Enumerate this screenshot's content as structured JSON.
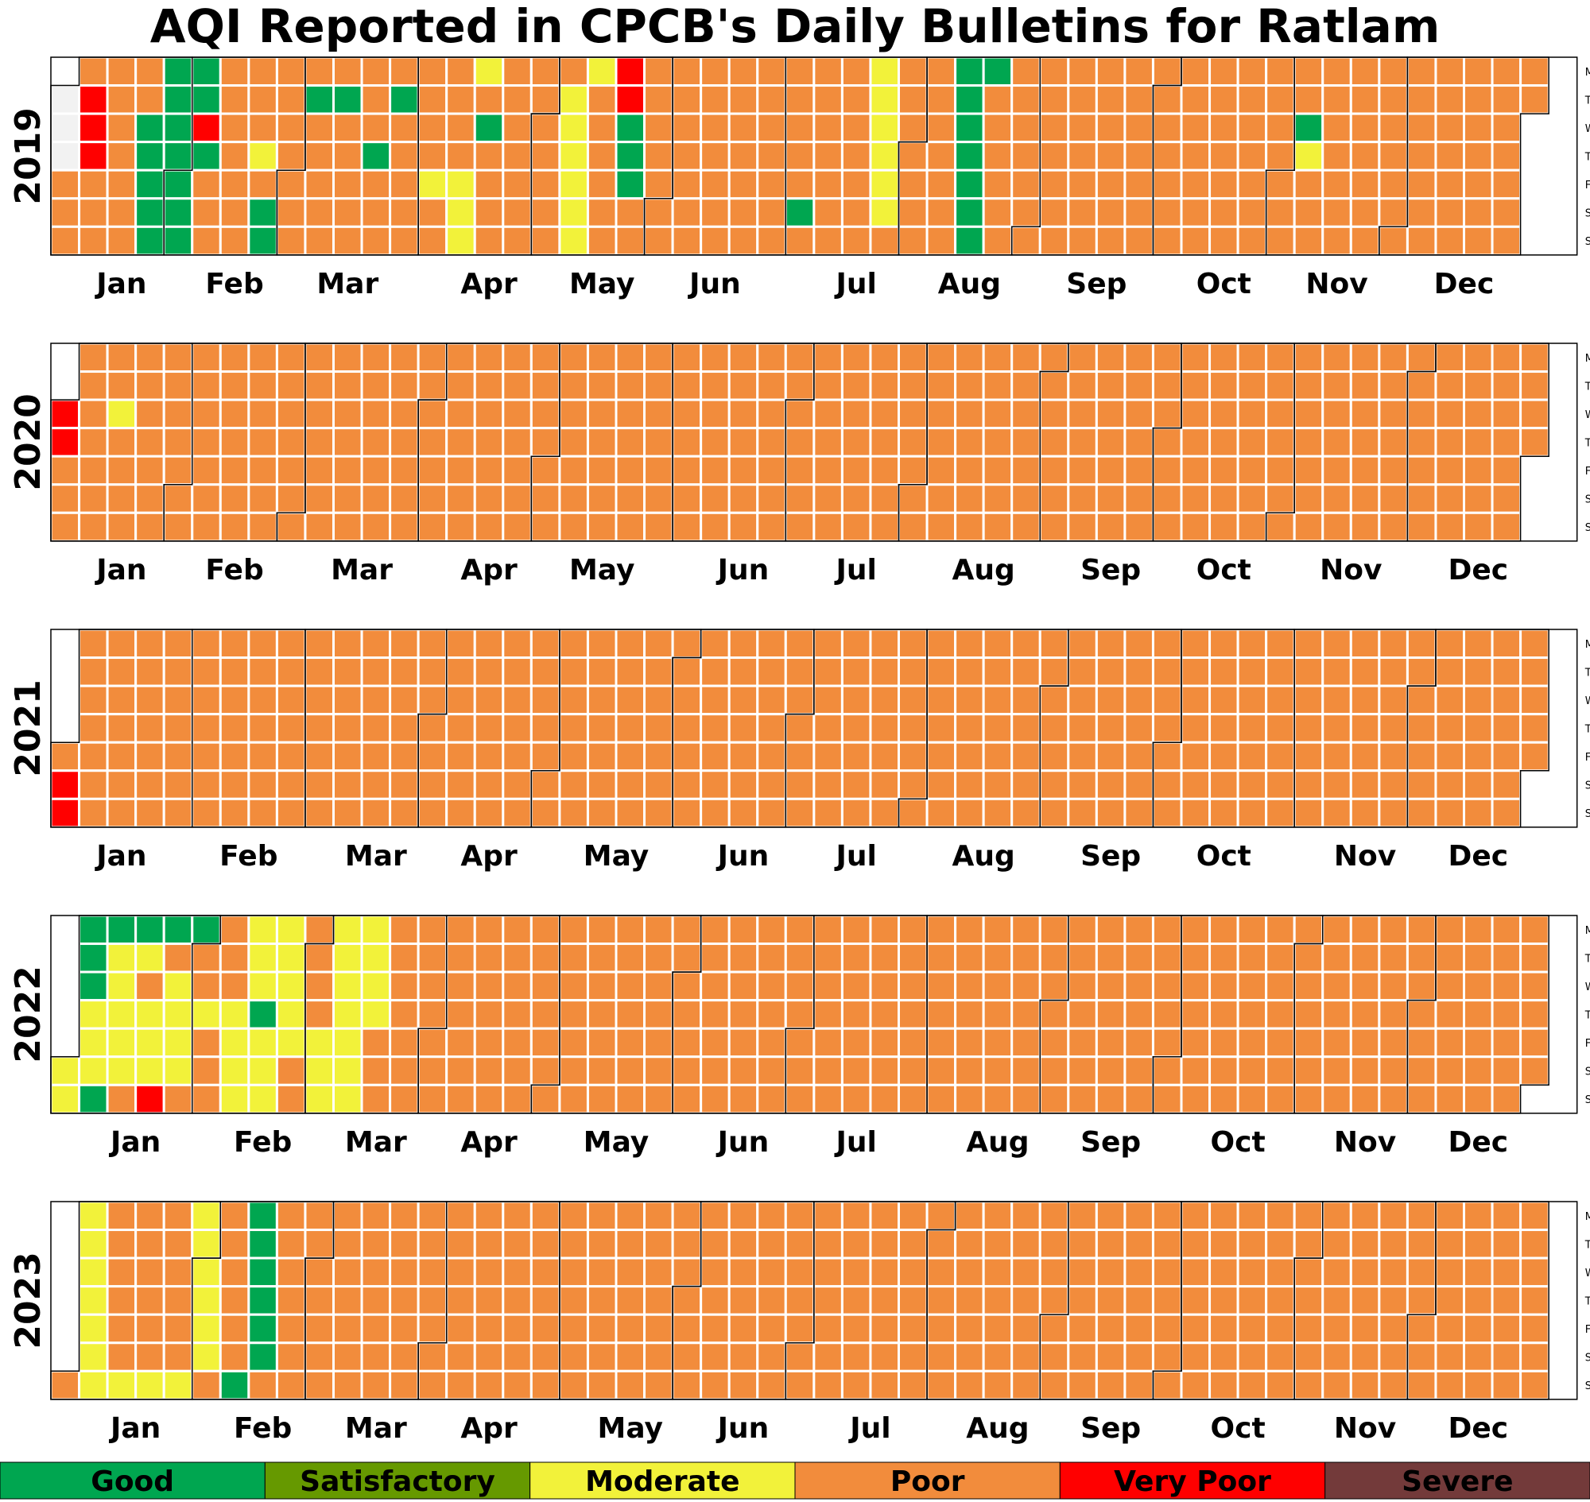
{
  "chart_data": {
    "type": "heatmap",
    "subtype": "calendar",
    "title": "AQI Reported in CPCB's Daily Bulletins for Ratlam",
    "weekday_labels": [
      "Mon",
      "Tue",
      "Wed",
      "Thu",
      "Fri",
      "Sat",
      "Sun"
    ],
    "month_labels": [
      "Jan",
      "Feb",
      "Mar",
      "Apr",
      "May",
      "Jun",
      "Jul",
      "Aug",
      "Sep",
      "Oct",
      "Nov",
      "Dec"
    ],
    "categories": [
      {
        "label": "Good",
        "color": "#00A650"
      },
      {
        "label": "Satisfactory",
        "color": "#669900"
      },
      {
        "label": "Moderate",
        "color": "#F2F23A"
      },
      {
        "label": "Poor",
        "color": "#F28C3C"
      },
      {
        "label": "Very Poor",
        "color": "#FF0000"
      },
      {
        "label": "Severe",
        "color": "#733A3A"
      }
    ],
    "note": "Each year string lists daily AQI category codes from Jan 1: G=Good, S=Satisfactory, M=Moderate, P=Poor, V=Very Poor, X=Severe, N=no data.",
    "years": [
      {
        "year": "2019",
        "days": "NNNPPPPVVVPPPPPPPPPPPPGGGGGGGGGGGGGGVGPPPPPPPPPPPPPMPGGPPPPPPPPGPPPPPPGPPPPPPPPGPPPPGPPPPPPPPPMPPPPPPMMMMPGPPPPPPPPPPPPPPPPPPPMMMMMMMPPPPPPVVGGGPPPPPPPPPPPPPPPPPPPPPPPPPPPPPPPPPPPPPPPPPPGPPPPPPPPPPPPPPPMMMMMMPPPPPPPPPPPPPPPGGGGGGGGPPPPPPPPPPPPPPPPPPPPPPPPPPPPPPPPPPPPPPPPPPPPPPPPPPPPPPPPPPPPPPPPPPPPPPPPPPPPPPGMPPPPPPPPPPPPPPPPPPPPPPPPPPPPPPPPPPPPPPPPPPPPPPPPPPPPPPPPPPPPPPPPPPPGGGGGGGGGGGGGGGGGGGGGGGGGGGGGPPPPPPPPPPPPPPPPPPPPPPPPPPPPPPPPPPP"
      },
      {
        "year": "2020",
        "days": "VVPPPPPPPPPPPPMPPPPPPPPPPPPPPPPPPPPPPPPPPPPPPPPPPPPPPPPPPPPPPPPPPPPPPPPPPPPPPPPPPPPPPPPPPPPPPPPPPPPPPPPPPPPPPPPPPPPPPPPPPPPPPPPPPPPPPPPPPPPPPPPPPPPPPPPPPPPPPPPPPPPPPPPPPPPPPPPPPPPPPPPPPPPPPPPPPPPPPPPPPPPPPPPPPPPPPPPPPPPPPPPPPPPPPPPPPPPPPPPPPPPPPPPPPPPPPPPPPPPPPPPPPPPPPPPPPPPPPPPPPPPPPPPPPPPPPPPPPPPPPPPPPPPPPPPPPPPPPPPPPPPPPPPPPPPPPPPPPPPPPPPPPPPPPPPPPPPPPPPPPPPPPPPPPPPPPPPPPPPPPPPPPPPPPPPPPPPPPPPPPPPPPPPPPPPPPPPPPPPPPPPPPPPPPPPPPPPPPPPPPPPPPPPPPPPPPPPPPPPPPPPPPPPPPPPPPPPPPPPPPPPPPPPPPPPP"
      },
      {
        "year": "2021",
        "days": "PVVPPPPPPPPPPPPPPPPPPPPPPPPPPPPPPPPPPPPPPPPPPPPPPPPPPPPPPPPPPPPPPPPPPPPPPPPPPPPPPPPPPPPPPPPPPPPPPPPPPPPPPPPPPPPPPPPPPPPPPPPPPPPPPPPPPPPPPPPPPPPPPPPPPPPPPPPPPPPPPPPPPPPPPPPPPPPPPPPPPPPPPPPPPPPPPPPPPPPPPPPPPPPPPPPPPPPPPPPPPPPPPPPPPPPPPPPPPPPPPPPPPPPPPPPPPPPPPPPPPPPPPPPPPPPPPPPPPPPPPPPPPPPPPPPPPPPPPPPPPPPPPPPPPPPPPPPPPPPPPPPPPPPPPPPPPPPPPPPPPPPPPPPPPPPPPPPPPPPPPPPPPPPPPPPPPPPPPPPPPPPPPPPPPPPPPPPPPPPPPPPPPPPPPPPPPPPPPPPPPPPPPPPPPPPPPPPPPPPPPPPPPPPPPPPPPPPPPPPPPPPPPPPPPPPPPPPPPPPPPPPPPPP"
      },
      {
        "year": "2022",
        "days": "MMGGGMMMGGMMMMMPGMPMMMVGPMMMMPGPPMPPPPPPMMMMMMMGMMMMMMMMPPPPPPMMMMMMMMMMMMMMPPPPPPPPPPPPPPPPPPPPPPPPPPPPPPPPPPPPPPPPPPPPPPPPPPPPPPPPPPPPPPPPPPPPPPPPPPPPPPPPPPPPPPPPPPPPPPPPPPPPPPPPPPPPPPPPPPPPPPPPPPPPPPPPPPPPPPPPPPPPPPPPPPPPPPPPPPPPPPPPPPPPPPPPPPPPPPPPPPPPPPPPPPPPPPPPPPPPPPPPPPPPPPPPPPPPPPPPPPPPPPPPPPPPPPPPPPPPPPPPPPPPPPPPPPPPPPPPPPPPPPPPPPPPPPPPPPPPPPPPPPPPPPPPPPPPPPPPPPPPPPPPPPPPPPPPPPPPPPPPPPPPPPPPPPPPPPPPPPPPPPPPPPPPPPPPPPPPPPPPPPPPPPPPPPPPPPPPPPPPPPPPPPPPPPPPPPPPPPPPPPPPPPPPPPPPPPPPPPPPPPPPPPPPPPPPPPPP"
      },
      {
        "year": "2023",
        "days": "PMMMMMMMPPPPPPMPPPPPPMPPPPPPMMMMMMMPPPPPPPGGGGGGGPPPPPPPPPPPPPPPPPPPPPPPPPPPPPPPPPPPPPPPPPPPPPPPPPPPPPPPPPPPPPPPPPPPPPPPPPPPPPPPPPPPPPPPPPPPPPPPPPPPPPPPPPPPPPPPPPPPPPPPPPPPPPPPPPPPPPPPPPPPPPPPPPPPPPPPPPPPPPPPPPPPPPPPPPPPPPPPPPPPPPPPPPPPPPPPPPPPPPPPPPPPPPPPPPPPPPPPPPPPPPPPPPPPPPPPPPPPPPPPPPPPPPPPPPPPPPPPPPPPPPPPPPPPPPPPPPPPPPPPPPPPPPPPPPPPPPPPPPPPPPPPPPPPPPPPPPPPPPPPPPPPPPPPPPPPPPPPPPPPPPPPPPPPPPPPPPPPPPPPPPPPPPPPPPPPPPPPPPPPPPPPPPPPPPPPPPPPPPPPPPPPPPPPPPPPPPPPPPPPPPPPPPPPPPPPPPPPPPPPPPPPPPPPPPPPPPP"
      }
    ]
  }
}
